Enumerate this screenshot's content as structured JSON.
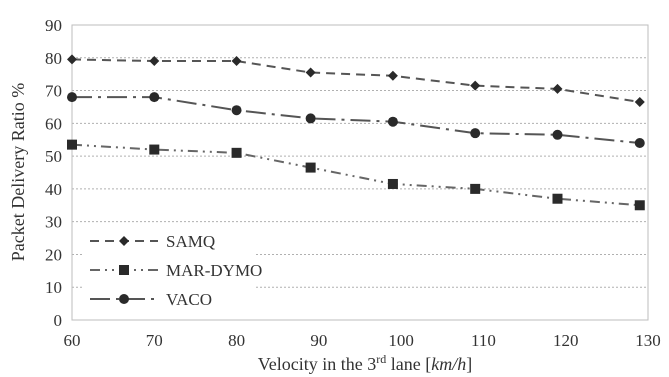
{
  "chart_data": {
    "type": "line",
    "xlabel_main": "Velocity in the 3",
    "xlabel_sup": "rd",
    "xlabel_tail": " lane [",
    "xlabel_unit": "km/h",
    "xlabel_end": "]",
    "ylabel": "Packet Delivery Ratio %",
    "xlim": [
      60,
      130
    ],
    "ylim": [
      0,
      90
    ],
    "xticks": [
      60,
      70,
      80,
      90,
      100,
      110,
      120,
      130
    ],
    "yticks": [
      0,
      10,
      20,
      30,
      40,
      50,
      60,
      70,
      80,
      90
    ],
    "grid": true,
    "legend_position": "bottom-left",
    "series": [
      {
        "name": "SAMQ",
        "marker": "diamond",
        "dash": "dashed",
        "color": "#555555",
        "x": [
          60,
          70,
          80,
          89,
          99,
          109,
          119,
          129
        ],
        "y": [
          79.5,
          79,
          79,
          75.5,
          74.5,
          71.5,
          70.5,
          66.5
        ]
      },
      {
        "name": "MAR-DYMO",
        "marker": "square",
        "dash": "dash-dot-dot",
        "color": "#666666",
        "x": [
          60,
          70,
          80,
          89,
          99,
          109,
          119,
          129
        ],
        "y": [
          53.5,
          52,
          51,
          46.5,
          41.5,
          40,
          37,
          35
        ]
      },
      {
        "name": "VACO",
        "marker": "circle",
        "dash": "long-dash-dot",
        "color": "#555555",
        "x": [
          60,
          70,
          80,
          89,
          99,
          109,
          119,
          129
        ],
        "y": [
          68,
          68,
          64,
          61.5,
          60.5,
          57,
          56.5,
          54
        ]
      }
    ]
  }
}
